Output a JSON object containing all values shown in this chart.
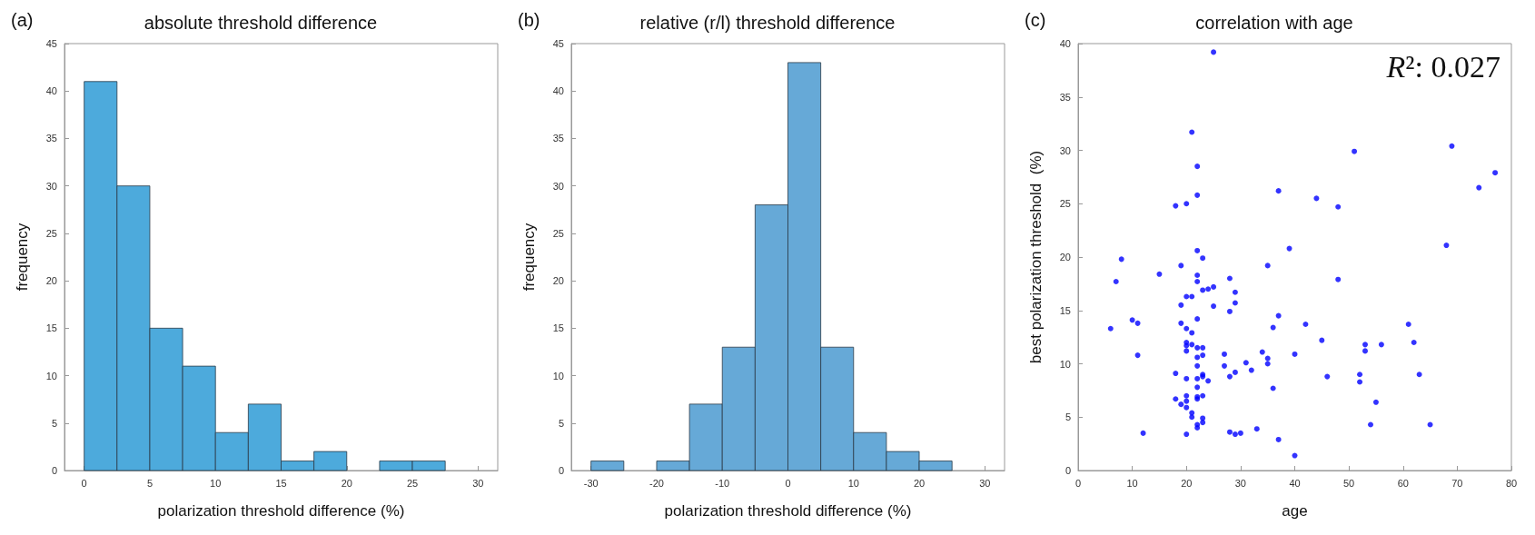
{
  "chart_data": [
    {
      "type": "histogram",
      "title": "absolute threshold difference",
      "xlabel": "polarization threshold difference (%)",
      "ylabel": "frequency",
      "annotations": [
        "(a)"
      ],
      "color": "#4daadc",
      "bins": [
        0,
        2.5,
        5,
        7.5,
        10,
        12.5,
        15,
        17.5,
        20,
        22.5,
        25,
        27.5
      ],
      "values": [
        41,
        30,
        15,
        11,
        4,
        7,
        1,
        2,
        0,
        1,
        1
      ],
      "xlim": [
        -1.5,
        31.5
      ],
      "xticks": [
        0,
        5,
        10,
        15,
        20,
        25,
        30
      ],
      "ylim": [
        0,
        45
      ],
      "yticks": [
        0,
        5,
        10,
        15,
        20,
        25,
        30,
        35,
        40,
        45
      ],
      "grid": false
    },
    {
      "type": "histogram",
      "title": "relative (r/l) threshold difference",
      "xlabel": "polarization threshold difference (%)",
      "ylabel": "frequency",
      "annotations": [
        "(b)"
      ],
      "color": "#66a9d7",
      "bins": [
        -30,
        -25,
        -20,
        -15,
        -10,
        -5,
        0,
        5,
        10,
        15,
        20,
        25
      ],
      "values": [
        1,
        0,
        1,
        7,
        13,
        28,
        43,
        13,
        4,
        2,
        1
      ],
      "xlim": [
        -33,
        33
      ],
      "xticks": [
        -30,
        -20,
        -10,
        0,
        10,
        20,
        30
      ],
      "ylim": [
        0,
        45
      ],
      "yticks": [
        0,
        5,
        10,
        15,
        20,
        25,
        30,
        35,
        40,
        45
      ],
      "grid": false
    },
    {
      "type": "scatter",
      "title": "correlation with age",
      "xlabel": "age",
      "ylabel": "best polarization threshold  (%)",
      "annotations": [
        "(c)",
        "R²: 0.027"
      ],
      "color": "#0000ff",
      "marker": "circle",
      "x": [
        6,
        7,
        8,
        10,
        11,
        11,
        12,
        15,
        18,
        18,
        18,
        19,
        19,
        19,
        19,
        20,
        20,
        20,
        20,
        20,
        20,
        20,
        20,
        20,
        20,
        20,
        21,
        21,
        21,
        21,
        21,
        21,
        22,
        22,
        22,
        22,
        22,
        22,
        22,
        22,
        22,
        22,
        22,
        22,
        22,
        22,
        22,
        23,
        23,
        23,
        23,
        23,
        23,
        23,
        23,
        23,
        24,
        24,
        25,
        25,
        25,
        27,
        27,
        28,
        28,
        28,
        28,
        29,
        29,
        29,
        29,
        30,
        31,
        32,
        33,
        69,
        51,
        77,
        74,
        37,
        44,
        48,
        68,
        39,
        35,
        48,
        37,
        61,
        42,
        36,
        45,
        62,
        53,
        56,
        53,
        34,
        40,
        35,
        35,
        52,
        63,
        46,
        52,
        36,
        55,
        54,
        65,
        37,
        40
      ],
      "values": [
        13.3,
        17.7,
        19.8,
        14.1,
        13.8,
        10.8,
        3.5,
        18.4,
        24.8,
        9.1,
        6.7,
        19.2,
        15.5,
        13.8,
        6.2,
        25.0,
        16.3,
        13.3,
        12.0,
        11.7,
        11.2,
        8.6,
        7.0,
        6.5,
        5.9,
        3.4,
        31.7,
        16.3,
        12.9,
        11.8,
        5.4,
        5.0,
        28.5,
        25.8,
        20.6,
        18.3,
        17.7,
        14.2,
        11.5,
        10.6,
        9.8,
        8.6,
        7.8,
        6.9,
        6.7,
        4.3,
        4.0,
        19.9,
        16.9,
        11.5,
        10.8,
        9.0,
        8.8,
        7.0,
        4.9,
        4.5,
        17.0,
        8.4,
        39.2,
        17.2,
        15.4,
        10.9,
        9.8,
        18.0,
        14.9,
        8.8,
        3.6,
        16.7,
        15.7,
        9.2,
        3.4,
        3.5,
        10.1,
        9.4,
        3.9,
        30.4,
        29.9,
        27.9,
        26.5,
        26.2,
        25.5,
        24.7,
        21.1,
        20.8,
        19.2,
        17.9,
        14.5,
        13.7,
        13.7,
        13.4,
        12.2,
        12.0,
        11.8,
        11.8,
        11.2,
        11.1,
        10.9,
        10.5,
        10.0,
        9.0,
        9.0,
        8.8,
        8.3,
        7.7,
        6.4,
        4.3,
        4.3,
        2.9,
        1.4
      ],
      "xlim": [
        0,
        80
      ],
      "xticks": [
        0,
        10,
        20,
        30,
        40,
        50,
        60,
        70,
        80
      ],
      "ylim": [
        0,
        40
      ],
      "yticks": [
        0,
        5,
        10,
        15,
        20,
        25,
        30,
        35,
        40
      ],
      "grid": false
    }
  ]
}
